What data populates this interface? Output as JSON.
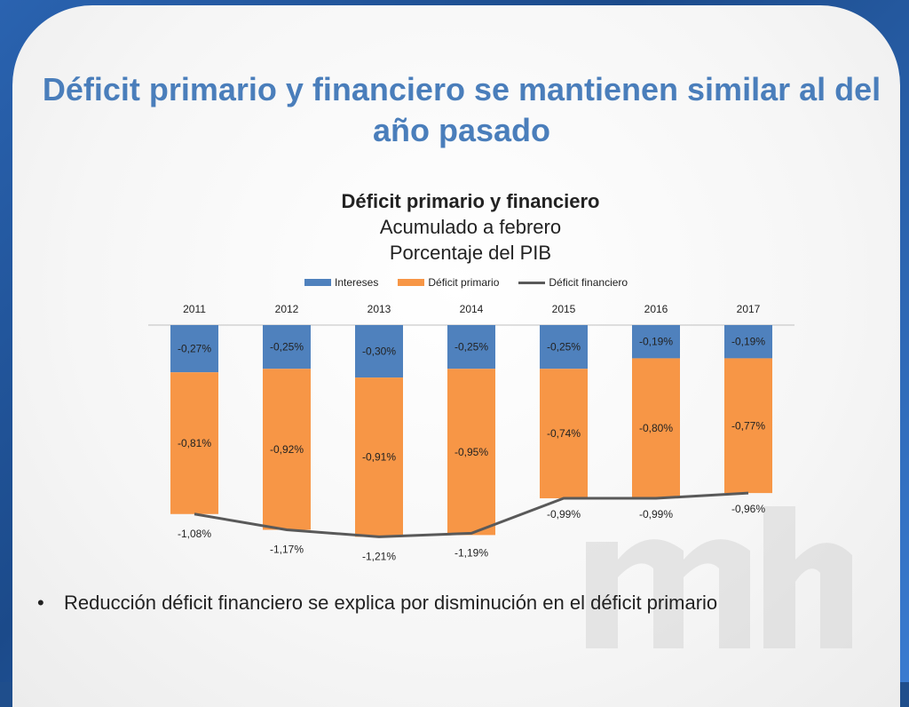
{
  "slide": {
    "title": "Déficit primario y financiero se mantienen similar al del año pasado",
    "bullet": "Reducción déficit financiero se explica por disminución  en el déficit primario"
  },
  "chart_data": {
    "type": "bar",
    "title": "Déficit primario y financiero",
    "subtitle": "Acumulado a febrero",
    "subtitle2": "Porcentaje del PIB",
    "categories": [
      "2011",
      "2012",
      "2013",
      "2014",
      "2015",
      "2016",
      "2017"
    ],
    "series": [
      {
        "name": "Intereses",
        "kind": "bar",
        "color": "#4f81bd",
        "values": [
          -0.27,
          -0.25,
          -0.3,
          -0.25,
          -0.25,
          -0.19,
          -0.19
        ],
        "labels": [
          "-0,27%",
          "-0,25%",
          "-0,30%",
          "-0,25%",
          "-0,25%",
          "-0,19%",
          "-0,19%"
        ]
      },
      {
        "name": "Déficit primario",
        "kind": "bar",
        "color": "#f79646",
        "values": [
          -0.81,
          -0.92,
          -0.91,
          -0.95,
          -0.74,
          -0.8,
          -0.77
        ],
        "labels": [
          "-0,81%",
          "-0,92%",
          "-0,91%",
          "-0,95%",
          "-0,74%",
          "-0,80%",
          "-0,77%"
        ]
      },
      {
        "name": "Déficit financiero",
        "kind": "line",
        "color": "#595959",
        "values": [
          -1.08,
          -1.17,
          -1.21,
          -1.19,
          -0.99,
          -0.99,
          -0.96
        ],
        "labels": [
          "-1,08%",
          "-1,17%",
          "-1,21%",
          "-1,19%",
          "-0,99%",
          "-0,99%",
          "-0,96%"
        ]
      }
    ],
    "stacked": true,
    "legend": "top",
    "xaxis_position": "top",
    "grid": false
  }
}
